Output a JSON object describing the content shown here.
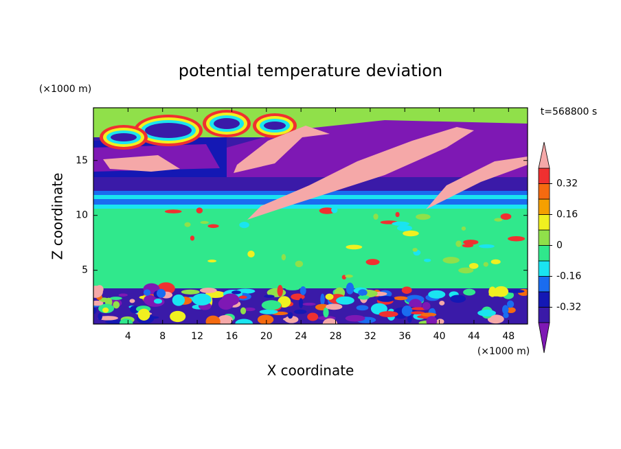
{
  "chart_data": {
    "type": "contour",
    "title": "potential temperature deviation",
    "x_label": "X coordinate",
    "y_label": "Z coordinate",
    "x_unit_label": "(×1000 m)",
    "y_unit_label": "(×1000 m)",
    "time_label": "t=568800 s",
    "xlim": [
      0,
      50.2
    ],
    "ylim": [
      0.1,
      19.8
    ],
    "xticks": [
      4,
      8,
      12,
      16,
      20,
      24,
      28,
      32,
      36,
      40,
      44,
      48
    ],
    "yticks": [
      5,
      10,
      15
    ],
    "levels": [
      -0.4,
      -0.32,
      -0.24,
      -0.16,
      -0.08,
      0,
      0.08,
      0.16,
      0.24,
      0.32,
      0.4
    ],
    "level_ticks": [
      -0.32,
      -0.16,
      0,
      0.16,
      0.32
    ],
    "colors": [
      "#7e18b4",
      "#3a1aa8",
      "#1418b4",
      "#1a6cf0",
      "#1ae4f0",
      "#30e88c",
      "#90e04a",
      "#f0f020",
      "#f5a000",
      "#f56a10",
      "#f03030",
      "#f5a8a8"
    ]
  }
}
